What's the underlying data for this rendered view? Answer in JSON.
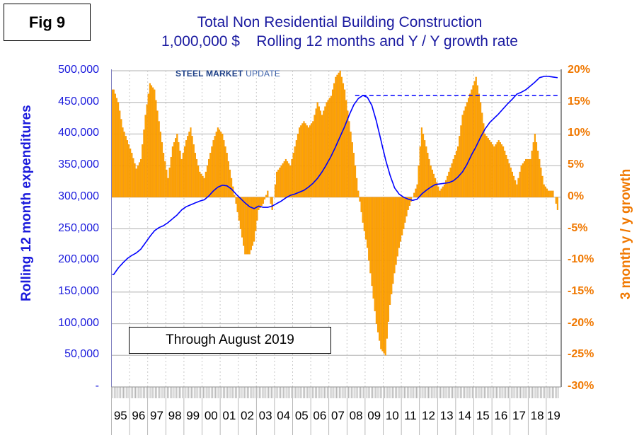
{
  "fig_label": "Fig 9",
  "title_line1": "Total Non Residential Building Construction",
  "title_line2": "1,000,000 $    Rolling 12 months and Y / Y growth rate",
  "logo": {
    "bold": "STEEL MARKET",
    "light": "UPDATE"
  },
  "annotation": "Through August 2019",
  "colors": {
    "line": "#0000FF",
    "bars": "#FFA500",
    "bar_edge": "#F08C00",
    "left_axis": "#1A1ADC",
    "right_axis": "#F07800"
  },
  "chart_data": {
    "type": "bar+line",
    "ylabel_left": "Rolling 12 month expenditures",
    "ylabel_right": "3 month y / y growth",
    "left_ticks": [
      "500,000",
      "450,000",
      "400,000",
      "350,000",
      "300,000",
      "250,000",
      "200,000",
      "150,000",
      "100,000",
      "50,000",
      "-"
    ],
    "right_ticks": [
      "20%",
      "15%",
      "10%",
      "5%",
      "0%",
      "-5%",
      "-10%",
      "-15%",
      "-20%",
      "-25%",
      "-30%"
    ],
    "ylim_left": [
      0,
      500000
    ],
    "ylim_right": [
      -30,
      20
    ],
    "x_tick_labels": [
      "95",
      "96",
      "97",
      "98",
      "99",
      "00",
      "01",
      "02",
      "03",
      "04",
      "05",
      "06",
      "07",
      "08",
      "09",
      "10",
      "11",
      "12",
      "13",
      "14",
      "15",
      "16",
      "17",
      "18",
      "19"
    ],
    "x_range": [
      "1995-01",
      "2019-08"
    ],
    "resolution": "quarterly (Q1 1995 - Q3 2019)",
    "growth_pct": [
      17,
      15,
      11,
      9,
      7,
      4.5,
      6,
      13,
      18,
      17,
      12,
      7,
      3,
      8,
      10,
      6,
      9,
      11,
      7,
      4,
      3,
      6,
      9,
      11,
      10,
      7,
      3,
      -1,
      -5,
      -9,
      -9,
      -7,
      -2,
      -1,
      1,
      -2,
      4,
      5,
      6,
      5,
      8,
      11,
      12,
      11,
      12,
      15,
      13,
      15,
      16,
      19,
      20,
      17,
      12,
      7,
      1,
      -4,
      -8,
      -14,
      -20,
      -24,
      -25,
      -17,
      -12,
      -8,
      -5,
      -2,
      0,
      2,
      11,
      8,
      5,
      3,
      1,
      2,
      4,
      6,
      8,
      13,
      15,
      17,
      19,
      15,
      10,
      9,
      8,
      9,
      8,
      6,
      4,
      2,
      5,
      6,
      6,
      10,
      6,
      2,
      1,
      1,
      -2
    ],
    "rolling_12m": [
      178000,
      188000,
      196000,
      203000,
      208000,
      212000,
      218000,
      228000,
      238000,
      247000,
      252000,
      255000,
      260000,
      266000,
      272000,
      280000,
      285000,
      288000,
      291000,
      294000,
      296000,
      302000,
      310000,
      316000,
      319000,
      318000,
      313000,
      305000,
      298000,
      291000,
      285000,
      282000,
      286000,
      284000,
      284000,
      286000,
      290000,
      294000,
      299000,
      303000,
      305000,
      308000,
      311000,
      316000,
      322000,
      330000,
      340000,
      352000,
      365000,
      380000,
      396000,
      412000,
      430000,
      446000,
      456000,
      461000,
      458000,
      445000,
      420000,
      390000,
      360000,
      335000,
      315000,
      305000,
      300000,
      297000,
      295000,
      297000,
      305000,
      311000,
      316000,
      320000,
      321000,
      322000,
      323000,
      326000,
      332000,
      340000,
      352000,
      367000,
      380000,
      395000,
      408000,
      418000,
      425000,
      432000,
      440000,
      448000,
      455000,
      463000,
      466000,
      470000,
      476000,
      482000,
      489000,
      491000,
      491000,
      490000,
      489000
    ],
    "reference_line": {
      "value": 461000,
      "style": "dashed",
      "from": "2008"
    },
    "grid": true
  }
}
